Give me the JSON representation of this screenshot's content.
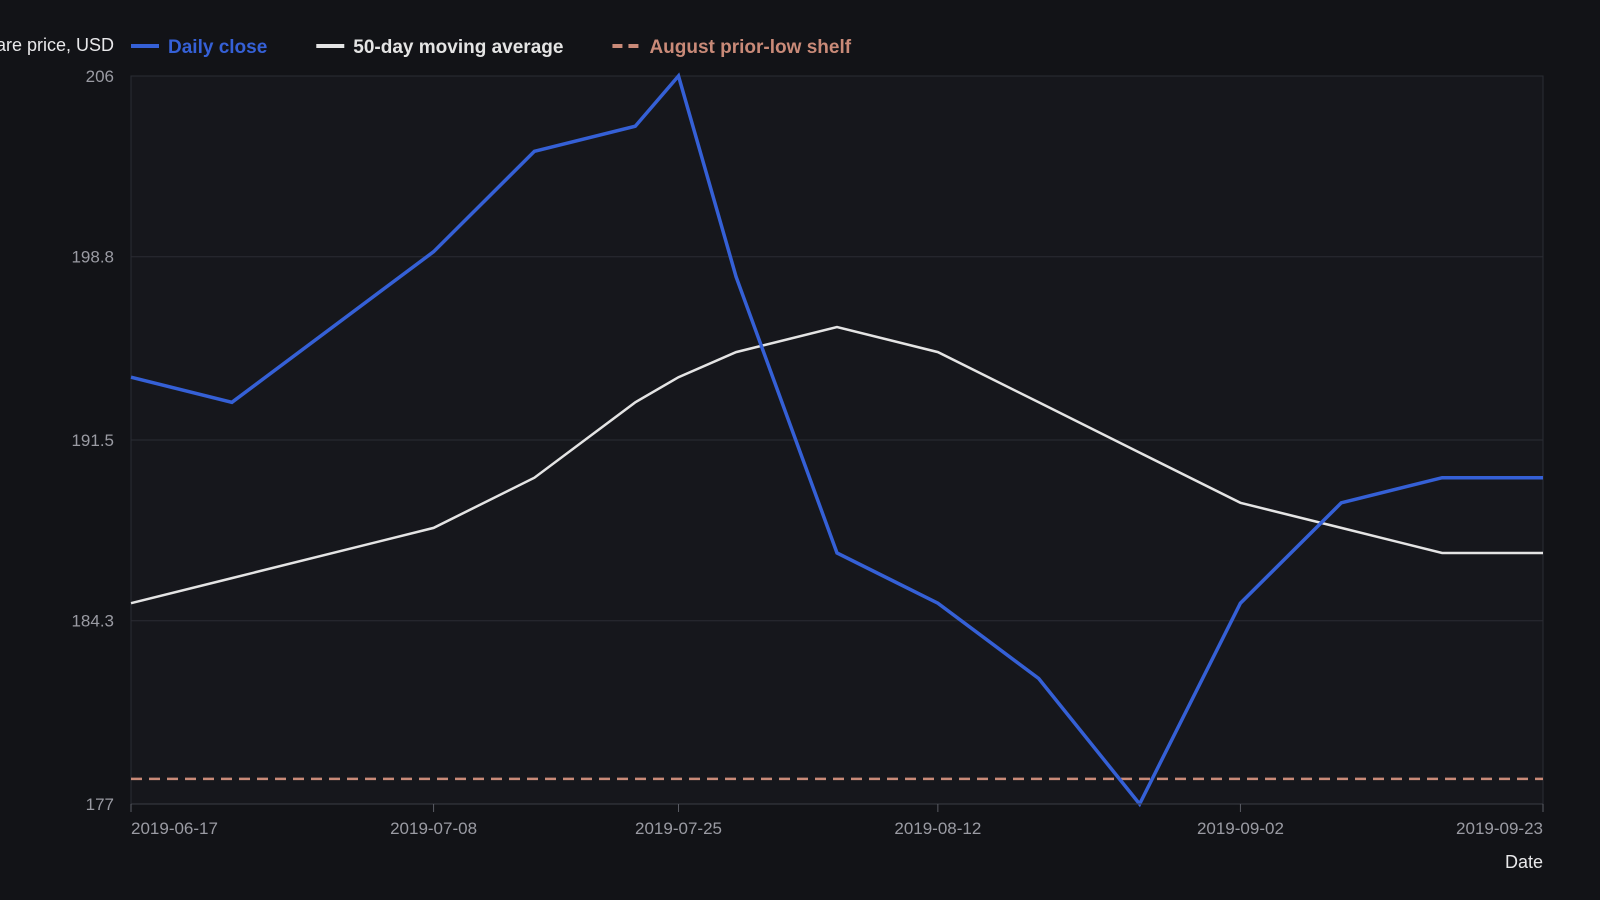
{
  "chart_data": {
    "type": "line",
    "ylabel": "Share price, USD",
    "xlabel": "Date",
    "ylim": [
      177,
      206
    ],
    "xlim": [
      "2019-06-17",
      "2019-09-23"
    ],
    "grid": true,
    "legend_position": "top-left",
    "y_ticks": [
      "206",
      "198.8",
      "191.5",
      "184.3",
      "177"
    ],
    "x_ticks": [
      "2019-06-17",
      "2019-07-08",
      "2019-07-25",
      "2019-08-12",
      "2019-09-02",
      "2019-09-23"
    ],
    "series": [
      {
        "name": "Daily close",
        "color": "#3560d6",
        "style": "solid",
        "x": [
          "2019-06-17",
          "2019-06-24",
          "2019-07-08",
          "2019-07-15",
          "2019-07-22",
          "2019-07-25",
          "2019-07-29",
          "2019-08-05",
          "2019-08-12",
          "2019-08-19",
          "2019-08-26",
          "2019-09-02",
          "2019-09-09",
          "2019-09-16",
          "2019-09-23"
        ],
        "values": [
          194.0,
          193.0,
          199.0,
          203.0,
          204.0,
          206.0,
          198.0,
          187.0,
          185.0,
          182.0,
          177.0,
          185.0,
          189.0,
          190.0,
          190.0
        ]
      },
      {
        "name": "50-day moving average",
        "color": "#e4e4e4",
        "style": "solid",
        "x": [
          "2019-06-17",
          "2019-06-24",
          "2019-07-08",
          "2019-07-15",
          "2019-07-22",
          "2019-07-25",
          "2019-07-29",
          "2019-08-05",
          "2019-08-12",
          "2019-08-19",
          "2019-08-26",
          "2019-09-02",
          "2019-09-09",
          "2019-09-16",
          "2019-09-23"
        ],
        "values": [
          185.0,
          186.0,
          188.0,
          190.0,
          193.0,
          194.0,
          195.0,
          196.0,
          195.0,
          193.0,
          191.0,
          189.0,
          188.0,
          187.0,
          187.0
        ]
      },
      {
        "name": "August prior-low shelf",
        "color": "#c98a78",
        "style": "dashed",
        "x": [
          "2019-06-17",
          "2019-09-23"
        ],
        "values": [
          178.0,
          178.0
        ]
      }
    ]
  }
}
